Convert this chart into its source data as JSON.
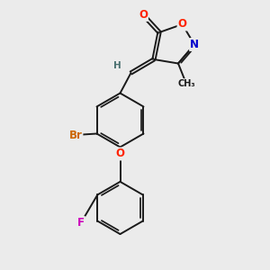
{
  "bg_color": "#ebebeb",
  "fig_size": [
    3.0,
    3.0
  ],
  "dpi": 100,
  "bond_color": "#1a1a1a",
  "bond_lw": 1.4,
  "atom_colors": {
    "O": "#ff2200",
    "N": "#0000cc",
    "Br": "#cc6600",
    "F": "#cc00bb",
    "H": "#4a7070",
    "C": "#1a1a1a"
  },
  "font_size_atom": 8.5,
  "font_size_methyl": 7.0,
  "font_size_H": 7.5
}
